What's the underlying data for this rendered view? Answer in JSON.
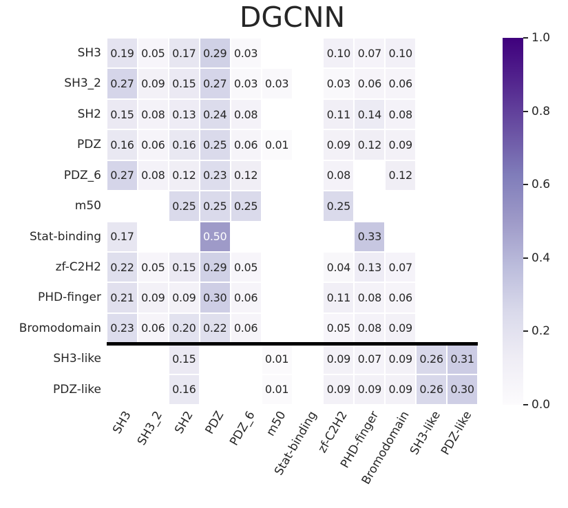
{
  "title": "DGCNN",
  "chart_data": {
    "type": "heatmap",
    "title": "DGCNN",
    "colormap": "Purples",
    "vmin": 0.0,
    "vmax": 1.0,
    "grid": false,
    "legend_position": "right-colorbar",
    "rows": [
      "SH3",
      "SH3_2",
      "SH2",
      "PDZ",
      "PDZ_6",
      "m50",
      "Stat-binding",
      "zf-C2H2",
      "PHD-finger",
      "Bromodomain",
      "SH3-like",
      "PDZ-like"
    ],
    "columns": [
      "SH3",
      "SH3_2",
      "SH2",
      "PDZ",
      "PDZ_6",
      "m50",
      "Stat-binding",
      "zf-C2H2",
      "PHD-finger",
      "Bromodomain",
      "SH3-like",
      "PDZ-like"
    ],
    "values": [
      [
        0.19,
        0.05,
        0.17,
        0.29,
        0.03,
        null,
        null,
        0.1,
        0.07,
        0.1,
        null,
        null
      ],
      [
        0.27,
        0.09,
        0.15,
        0.27,
        0.03,
        0.03,
        null,
        0.03,
        0.06,
        0.06,
        null,
        null
      ],
      [
        0.15,
        0.08,
        0.13,
        0.24,
        0.08,
        null,
        null,
        0.11,
        0.14,
        0.08,
        null,
        null
      ],
      [
        0.16,
        0.06,
        0.16,
        0.25,
        0.06,
        0.01,
        null,
        0.09,
        0.12,
        0.09,
        null,
        null
      ],
      [
        0.27,
        0.08,
        0.12,
        0.23,
        0.12,
        null,
        null,
        0.08,
        null,
        0.12,
        null,
        null
      ],
      [
        null,
        null,
        0.25,
        0.25,
        0.25,
        null,
        null,
        0.25,
        null,
        null,
        null,
        null
      ],
      [
        0.17,
        null,
        null,
        0.5,
        null,
        null,
        null,
        null,
        0.33,
        null,
        null,
        null
      ],
      [
        0.22,
        0.05,
        0.15,
        0.29,
        0.05,
        null,
        null,
        0.04,
        0.13,
        0.07,
        null,
        null
      ],
      [
        0.21,
        0.09,
        0.09,
        0.3,
        0.06,
        null,
        null,
        0.11,
        0.08,
        0.06,
        null,
        null
      ],
      [
        0.23,
        0.06,
        0.2,
        0.22,
        0.06,
        null,
        null,
        0.05,
        0.08,
        0.09,
        null,
        null
      ],
      [
        null,
        null,
        0.15,
        null,
        null,
        0.01,
        null,
        0.09,
        0.07,
        0.09,
        0.26,
        0.31
      ],
      [
        null,
        null,
        0.16,
        null,
        null,
        0.01,
        null,
        0.09,
        0.09,
        0.09,
        0.26,
        0.3
      ]
    ],
    "annotation_format": "two-decimals",
    "separator_after_row_index": 9,
    "colorbar": {
      "ticks": [
        1.0,
        0.8,
        0.6,
        0.4,
        0.2,
        0.0
      ],
      "anchor_colors": [
        "#fcfbfd",
        "#efedf5",
        "#dadaeb",
        "#bcbddc",
        "#9e9ac8",
        "#807dba",
        "#6a51a3",
        "#54278f",
        "#3f007d"
      ]
    },
    "colors": {
      "masked_cell": "#ffffff",
      "annotation_dark": "#262626",
      "annotation_light": "#ffffff",
      "separator": "#000000"
    }
  }
}
